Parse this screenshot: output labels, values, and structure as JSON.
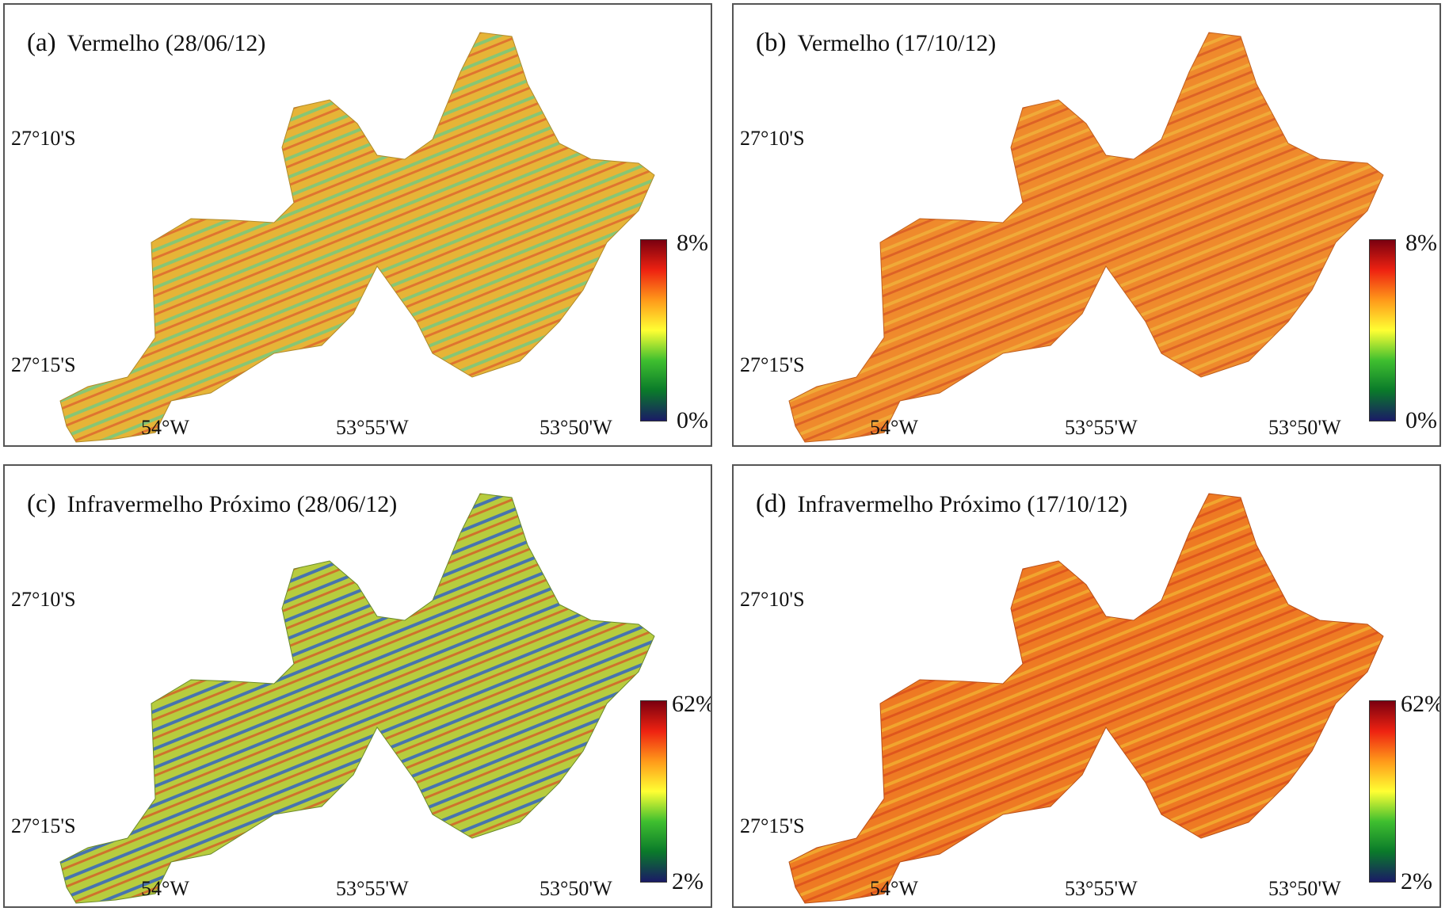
{
  "panels": [
    {
      "letter": "(a)",
      "title": "Vermelho (28/06/12)",
      "scale_max": "8%",
      "scale_min": "0%",
      "color_level": 0.45,
      "band": "red"
    },
    {
      "letter": "(b)",
      "title": "Vermelho (17/10/12)",
      "scale_max": "8%",
      "scale_min": "0%",
      "color_level": 0.72,
      "band": "red"
    },
    {
      "letter": "(c)",
      "title": "Infravermelho Próximo (28/06/12)",
      "scale_max": "62%",
      "scale_min": "2%",
      "color_level": 0.32,
      "band": "nir"
    },
    {
      "letter": "(d)",
      "title": "Infravermelho Próximo (17/10/12)",
      "scale_max": "62%",
      "scale_min": "2%",
      "color_level": 0.74,
      "band": "nir"
    }
  ],
  "latitude_labels": [
    "27°10'S",
    "27°15'S"
  ],
  "longitude_labels": [
    "54°W",
    "53°55'W",
    "53°50'W"
  ],
  "colormap": [
    "#1a1a66",
    "#0a7a2a",
    "#3fbf2f",
    "#ffff33",
    "#ff9a1a",
    "#ee2211",
    "#7a0010"
  ],
  "panel_colors": {
    "a": {
      "base": "#e6b437",
      "accent1": "#66cc88",
      "accent2": "#d9402a"
    },
    "b": {
      "base": "#ef8a2c",
      "accent1": "#f0c040",
      "accent2": "#c8301e"
    },
    "c": {
      "base": "#b7cc3e",
      "accent1": "#2a5ccc",
      "accent2": "#e03520"
    },
    "d": {
      "base": "#ee7a23",
      "accent1": "#f3c235",
      "accent2": "#cc2a17"
    }
  }
}
